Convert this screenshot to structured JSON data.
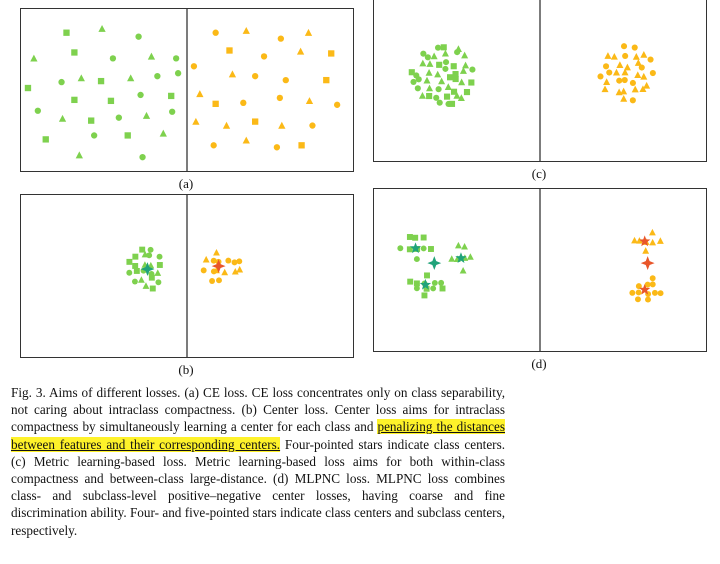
{
  "panels": [
    {
      "id": "a",
      "label": "(a)"
    },
    {
      "id": "b",
      "label": "(b)"
    },
    {
      "id": "c",
      "label": "(c)"
    },
    {
      "id": "d",
      "label": "(d)"
    }
  ],
  "colors": {
    "green": "#7ed14e",
    "orange": "#fbb917",
    "green_star": "#20a37a",
    "orange_star": "#e9562a"
  },
  "caption": {
    "part1": "Fig. 3.   Aims of different losses. (a) CE loss. CE loss concentrates only on class separability, not caring about intraclass compactness. (b) Center loss. Center loss aims for intraclass compactness by simultaneously learning a center for each class and ",
    "highlight": "penalizing the distances between features and their corresponding centers.",
    "part2": " Four-pointed stars indicate class centers. (c) Metric learning-based loss. Metric learning-based loss aims for both within-class compactness and between-class large-distance. (d) MLPNC loss. MLPNC loss combines class- and subclass-level positive–negative center losses, having coarse and fine discrimination ability. Four- and five-pointed stars indicate class centers and subclass centers, respectively."
  }
}
